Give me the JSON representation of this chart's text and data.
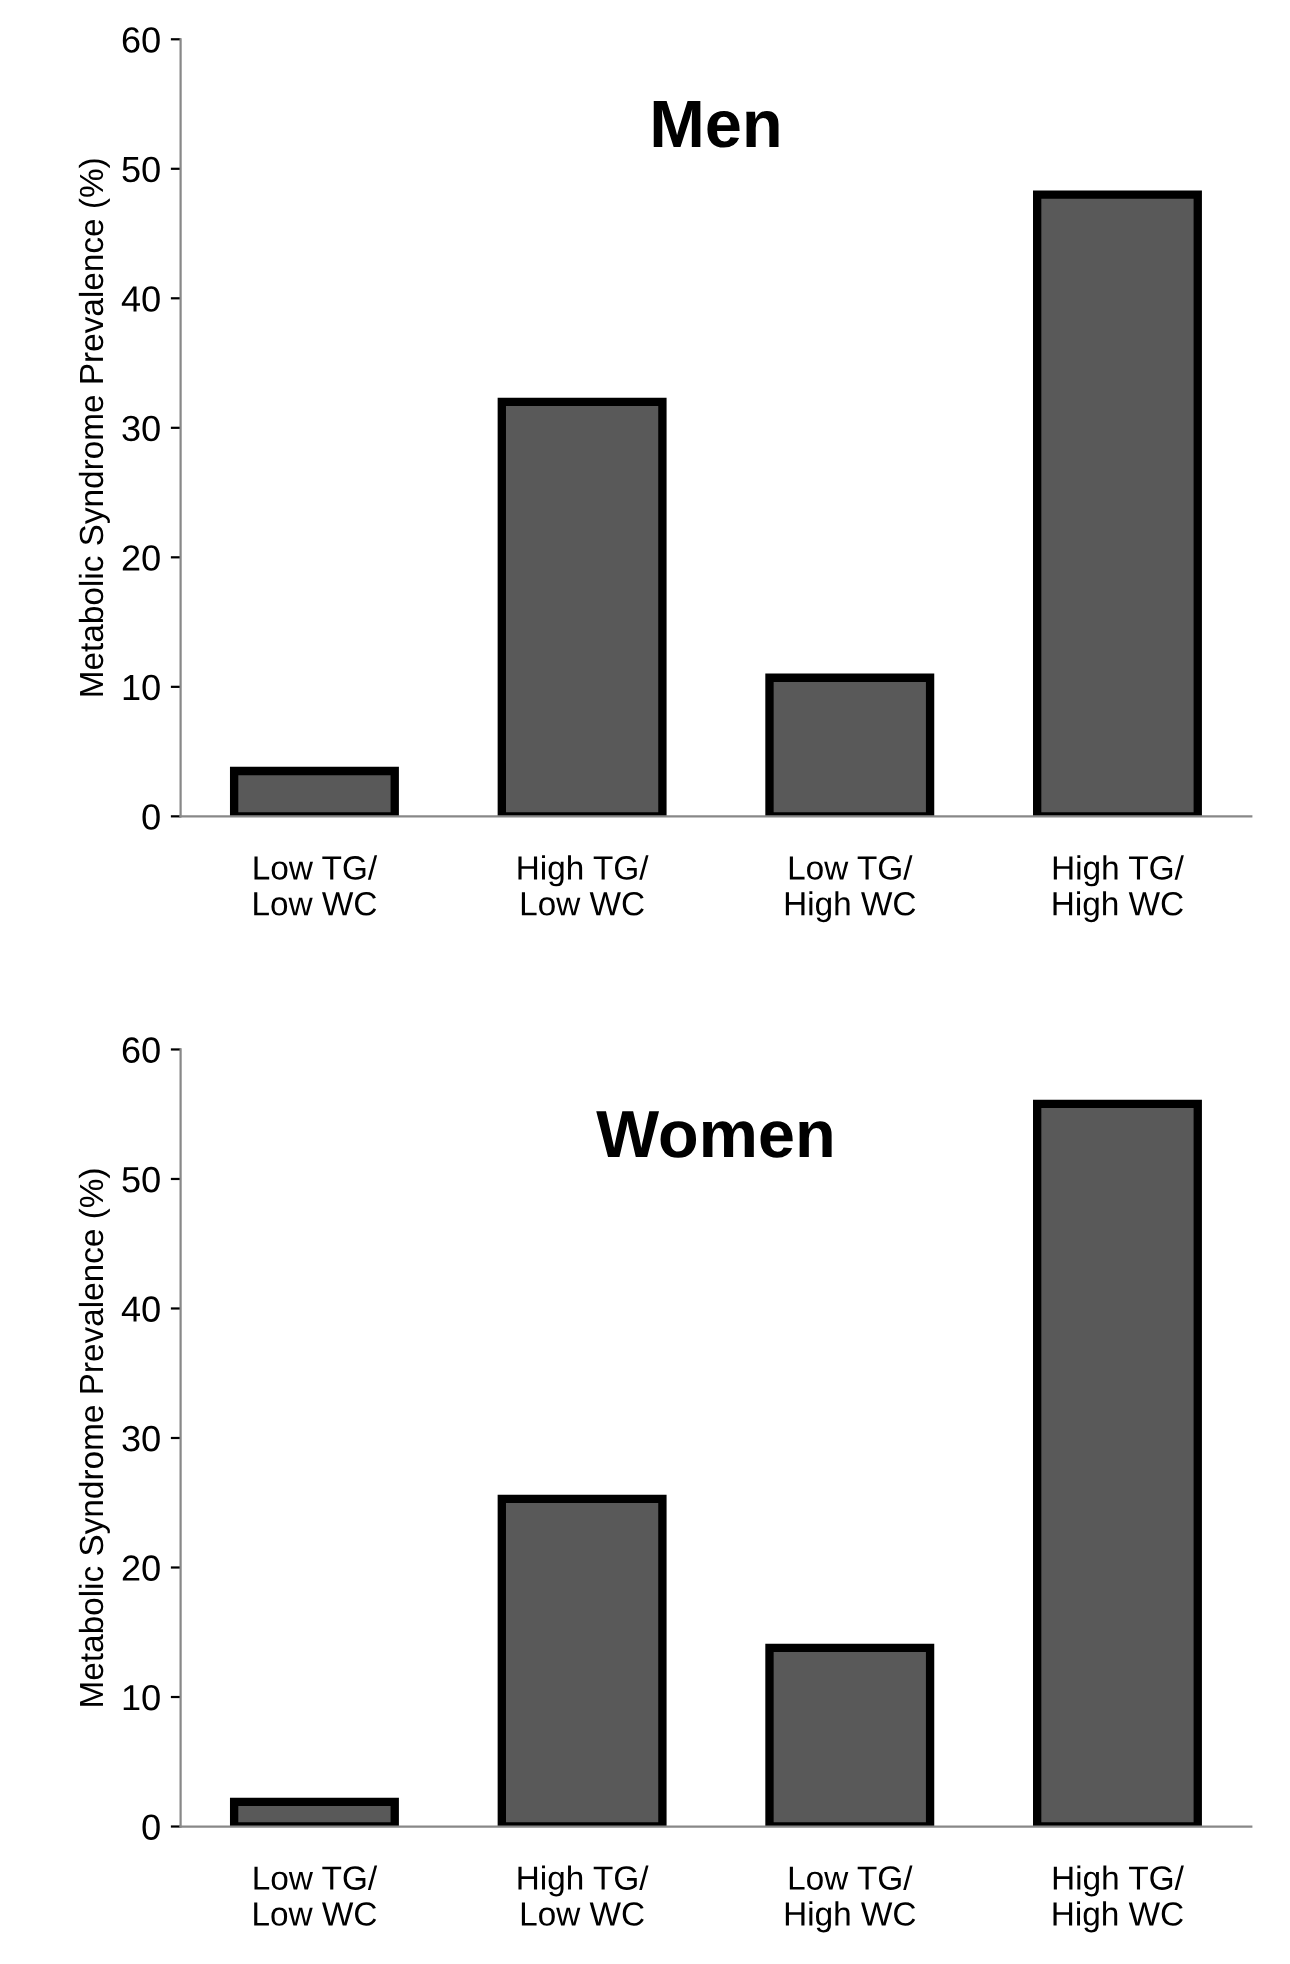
{
  "chart_data": [
    {
      "type": "bar",
      "title": "Men",
      "ylabel": "Metabolic Syndrome Prevalence (%)",
      "categories": [
        "Low TG/\nLow WC",
        "High TG/\nLow WC",
        "Low TG/\nHigh WC",
        "High TG/\nHigh WC"
      ],
      "values": [
        3.5,
        32,
        10.7,
        48
      ],
      "color": "#595959",
      "ylim": [
        0,
        60
      ],
      "yticks": [
        0,
        10,
        20,
        30,
        40,
        50,
        60
      ],
      "grid": false
    },
    {
      "type": "bar",
      "title": "Women",
      "ylabel": "Metabolic Syndrome Prevalence (%)",
      "categories": [
        "Low TG/\nLow WC",
        "High TG/\nLow WC",
        "Low TG/\nHigh WC",
        "High TG/\nHigh WC"
      ],
      "values": [
        1.9,
        25.3,
        13.8,
        55.8
      ],
      "color": "#595959",
      "ylim": [
        0,
        60
      ],
      "yticks": [
        0,
        10,
        20,
        30,
        40,
        50,
        60
      ],
      "grid": false
    }
  ]
}
